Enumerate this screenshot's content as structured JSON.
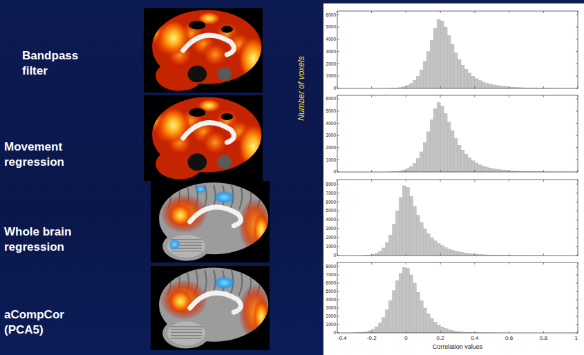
{
  "chart_data": [
    {
      "type": "histogram",
      "title": "Bandpass filter",
      "ylabel": "Number of voxels",
      "bins": [
        -0.4,
        -0.38,
        -0.36,
        -0.34,
        -0.32,
        -0.3,
        -0.28,
        -0.26,
        -0.24,
        -0.22,
        -0.2,
        -0.18,
        -0.16,
        -0.14,
        -0.12,
        -0.1,
        -0.08,
        -0.06,
        -0.04,
        -0.02,
        0,
        0.02,
        0.04,
        0.06,
        0.08,
        0.1,
        0.12,
        0.14,
        0.16,
        0.18,
        0.2,
        0.22,
        0.24,
        0.26,
        0.28,
        0.3,
        0.32,
        0.34,
        0.36,
        0.38,
        0.4,
        0.42,
        0.44,
        0.46,
        0.48,
        0.5,
        0.52,
        0.54,
        0.56,
        0.58,
        0.6,
        0.62,
        0.64,
        0.66,
        0.68,
        0.7,
        0.72,
        0.74,
        0.76,
        0.78,
        0.8,
        0.82,
        0.84,
        0.86,
        0.88,
        0.9,
        0.92,
        0.94,
        0.96,
        0.98,
        1
      ],
      "values": [
        0,
        0,
        0,
        0,
        0,
        0,
        0,
        0,
        0,
        0,
        0,
        0,
        0,
        0,
        0,
        10,
        20,
        40,
        80,
        150,
        250,
        400,
        650,
        1000,
        1500,
        2200,
        3000,
        3900,
        4900,
        5600,
        5500,
        5000,
        4300,
        3600,
        2900,
        2350,
        1900,
        1550,
        1250,
        1000,
        800,
        650,
        530,
        430,
        350,
        290,
        240,
        200,
        165,
        135,
        110,
        90,
        75,
        60,
        50,
        40,
        32,
        26,
        20,
        16,
        12,
        9,
        7,
        5,
        4,
        3,
        2,
        1,
        1,
        0
      ],
      "color": "#c4c4c4",
      "xlim": [
        -0.4,
        1
      ],
      "xticks": [
        -0.4,
        -0.2,
        0,
        0.2,
        0.4,
        0.6,
        0.8,
        1
      ],
      "ylim": [
        0,
        6300
      ],
      "yticks": [
        0,
        1000,
        2000,
        3000,
        4000,
        5000,
        6000
      ],
      "tick_labels": "y"
    },
    {
      "type": "histogram",
      "title": "Movement regression",
      "bins": [
        -0.4,
        -0.38,
        -0.36,
        -0.34,
        -0.32,
        -0.3,
        -0.28,
        -0.26,
        -0.24,
        -0.22,
        -0.2,
        -0.18,
        -0.16,
        -0.14,
        -0.12,
        -0.1,
        -0.08,
        -0.06,
        -0.04,
        -0.02,
        0,
        0.02,
        0.04,
        0.06,
        0.08,
        0.1,
        0.12,
        0.14,
        0.16,
        0.18,
        0.2,
        0.22,
        0.24,
        0.26,
        0.28,
        0.3,
        0.32,
        0.34,
        0.36,
        0.38,
        0.4,
        0.42,
        0.44,
        0.46,
        0.48,
        0.5,
        0.52,
        0.54,
        0.56,
        0.58,
        0.6,
        0.62,
        0.64,
        0.66,
        0.68,
        0.7,
        0.72,
        0.74,
        0.76,
        0.78,
        0.8,
        0.82,
        0.84,
        0.86,
        0.88,
        0.9,
        0.92,
        0.94,
        0.96,
        0.98,
        1
      ],
      "values": [
        0,
        0,
        0,
        0,
        0,
        0,
        0,
        0,
        0,
        0,
        0,
        0,
        0,
        0,
        0,
        10,
        20,
        45,
        90,
        170,
        280,
        450,
        700,
        1100,
        1650,
        2400,
        3300,
        4300,
        5200,
        5700,
        5400,
        4800,
        4100,
        3400,
        2750,
        2200,
        1800,
        1450,
        1150,
        920,
        740,
        600,
        490,
        400,
        330,
        270,
        225,
        185,
        150,
        125,
        100,
        82,
        68,
        55,
        45,
        36,
        29,
        23,
        18,
        14,
        11,
        8,
        6,
        5,
        4,
        3,
        2,
        1,
        1,
        0
      ],
      "color": "#c4c4c4",
      "xlim": [
        -0.4,
        1
      ],
      "xticks": [
        -0.4,
        -0.2,
        0,
        0.2,
        0.4,
        0.6,
        0.8,
        1
      ],
      "ylim": [
        0,
        6300
      ],
      "yticks": [
        0,
        1000,
        2000,
        3000,
        4000,
        5000,
        6000
      ],
      "tick_labels": "y"
    },
    {
      "type": "histogram",
      "title": "Whole brain regression",
      "bins": [
        -0.4,
        -0.38,
        -0.36,
        -0.34,
        -0.32,
        -0.3,
        -0.28,
        -0.26,
        -0.24,
        -0.22,
        -0.2,
        -0.18,
        -0.16,
        -0.14,
        -0.12,
        -0.1,
        -0.08,
        -0.06,
        -0.04,
        -0.02,
        0,
        0.02,
        0.04,
        0.06,
        0.08,
        0.1,
        0.12,
        0.14,
        0.16,
        0.18,
        0.2,
        0.22,
        0.24,
        0.26,
        0.28,
        0.3,
        0.32,
        0.34,
        0.36,
        0.38,
        0.4,
        0.42,
        0.44,
        0.46,
        0.48,
        0.5,
        0.52,
        0.54,
        0.56,
        0.58,
        0.6,
        0.62,
        0.64,
        0.66,
        0.68,
        0.7,
        0.72,
        0.74,
        0.76,
        0.78,
        0.8,
        0.82,
        0.84,
        0.86,
        0.88,
        0.9,
        0.92,
        0.94,
        0.96,
        0.98,
        1
      ],
      "values": [
        0,
        0,
        0,
        0,
        0,
        0,
        0,
        10,
        25,
        60,
        130,
        260,
        480,
        850,
        1450,
        2300,
        3500,
        5000,
        6500,
        7800,
        7600,
        6600,
        5500,
        4500,
        3700,
        3000,
        2450,
        2000,
        1650,
        1350,
        1100,
        900,
        740,
        610,
        500,
        410,
        340,
        280,
        230,
        190,
        155,
        125,
        100,
        80,
        65,
        52,
        42,
        34,
        27,
        21,
        16,
        12,
        9,
        7,
        5,
        4,
        3,
        2,
        2,
        1,
        1,
        0,
        0,
        0,
        0,
        0,
        0,
        0,
        0,
        0
      ],
      "color": "#c4c4c4",
      "xlim": [
        -0.4,
        1
      ],
      "xticks": [
        -0.4,
        -0.2,
        0,
        0.2,
        0.4,
        0.6,
        0.8,
        1
      ],
      "ylim": [
        0,
        8500
      ],
      "yticks": [
        0,
        1000,
        2000,
        3000,
        4000,
        5000,
        6000,
        7000,
        8000
      ],
      "tick_labels": "y"
    },
    {
      "type": "histogram",
      "title": "aCompCor (PCA5)",
      "xlabel": "Correlation values",
      "bins": [
        -0.4,
        -0.38,
        -0.36,
        -0.34,
        -0.32,
        -0.3,
        -0.28,
        -0.26,
        -0.24,
        -0.22,
        -0.2,
        -0.18,
        -0.16,
        -0.14,
        -0.12,
        -0.1,
        -0.08,
        -0.06,
        -0.04,
        -0.02,
        0,
        0.02,
        0.04,
        0.06,
        0.08,
        0.1,
        0.12,
        0.14,
        0.16,
        0.18,
        0.2,
        0.22,
        0.24,
        0.26,
        0.28,
        0.3,
        0.32,
        0.34,
        0.36,
        0.38,
        0.4,
        0.42,
        0.44,
        0.46,
        0.48,
        0.5,
        0.52,
        0.54,
        0.56,
        0.58,
        0.6,
        0.62,
        0.64,
        0.66,
        0.68,
        0.7,
        0.72,
        0.74,
        0.76,
        0.78,
        0.8,
        0.82,
        0.84,
        0.86,
        0.88,
        0.9,
        0.92,
        0.94,
        0.96,
        0.98,
        1
      ],
      "values": [
        0,
        0,
        0,
        0,
        5,
        15,
        35,
        70,
        140,
        260,
        450,
        750,
        1200,
        1850,
        2800,
        3900,
        5100,
        6300,
        7200,
        7900,
        7800,
        7000,
        6000,
        4900,
        3900,
        3000,
        2300,
        1750,
        1300,
        980,
        730,
        540,
        400,
        290,
        210,
        150,
        105,
        75,
        52,
        36,
        25,
        17,
        11,
        7,
        5,
        3,
        2,
        1,
        1,
        0,
        0,
        0,
        0,
        0,
        0,
        0,
        0,
        0,
        0,
        0,
        0,
        0,
        0,
        0,
        0,
        0,
        0,
        0,
        0,
        0
      ],
      "color": "#c4c4c4",
      "xlim": [
        -0.4,
        1
      ],
      "xticks": [
        -0.4,
        -0.2,
        0,
        0.2,
        0.4,
        0.6,
        0.8,
        1
      ],
      "ylim": [
        0,
        8500
      ],
      "yticks": [
        0,
        1000,
        2000,
        3000,
        4000,
        5000,
        6000,
        7000,
        8000
      ]
    }
  ]
}
